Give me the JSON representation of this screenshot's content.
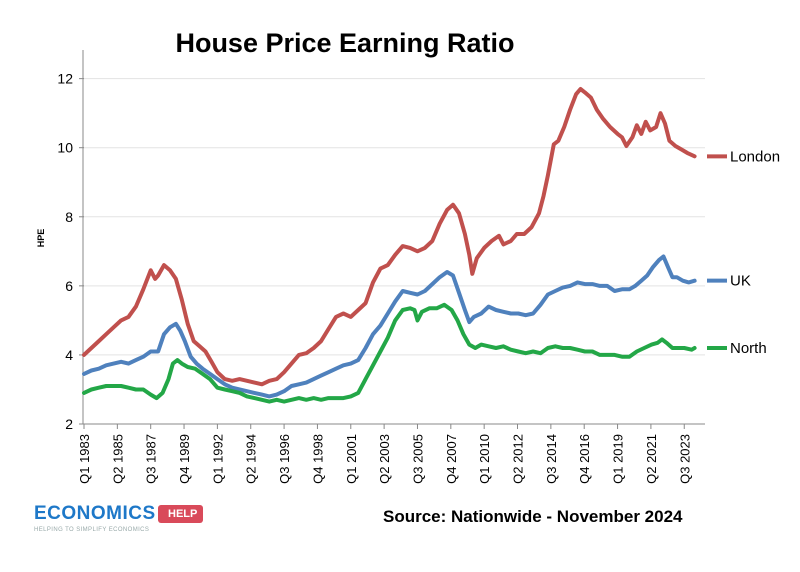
{
  "chart_data": {
    "type": "line",
    "title": "House Price Earning Ratio",
    "ylabel": "HPE",
    "ylim": [
      2,
      12.8
    ],
    "yticks": [
      2,
      4,
      6,
      8,
      10,
      12
    ],
    "xrange": [
      1983.0,
      2024.9
    ],
    "xtick_labels": [
      {
        "label": "Q1 1983",
        "x": 1983.0
      },
      {
        "label": "Q2 1985",
        "x": 1985.25
      },
      {
        "label": "Q3 1987",
        "x": 1987.5
      },
      {
        "label": "Q4 1989",
        "x": 1989.75
      },
      {
        "label": "Q1 1992",
        "x": 1992.0
      },
      {
        "label": "Q2 1994",
        "x": 1994.25
      },
      {
        "label": "Q3 1996",
        "x": 1996.5
      },
      {
        "label": "Q4 1998",
        "x": 1998.75
      },
      {
        "label": "Q1 2001",
        "x": 2001.0
      },
      {
        "label": "Q2 2003",
        "x": 2003.25
      },
      {
        "label": "Q3 2005",
        "x": 2005.5
      },
      {
        "label": "Q4 2007",
        "x": 2007.75
      },
      {
        "label": "Q1 2010",
        "x": 2010.0
      },
      {
        "label": "Q2 2012",
        "x": 2012.25
      },
      {
        "label": "Q3 2014",
        "x": 2014.5
      },
      {
        "label": "Q4 2016",
        "x": 2016.75
      },
      {
        "label": "Q1 2019",
        "x": 2019.0
      },
      {
        "label": "Q2 2021",
        "x": 2021.25
      },
      {
        "label": "Q3 2023",
        "x": 2023.5
      }
    ],
    "grid": "horizontal",
    "legend": "end-of-line labels, right",
    "series": [
      {
        "name": "London",
        "color": "#c0504d",
        "points": [
          [
            1983.0,
            4.0
          ],
          [
            1983.5,
            4.2
          ],
          [
            1984.0,
            4.4
          ],
          [
            1984.5,
            4.6
          ],
          [
            1985.0,
            4.8
          ],
          [
            1985.5,
            5.0
          ],
          [
            1986.0,
            5.1
          ],
          [
            1986.5,
            5.4
          ],
          [
            1987.0,
            5.9
          ],
          [
            1987.5,
            6.45
          ],
          [
            1987.8,
            6.2
          ],
          [
            1988.0,
            6.3
          ],
          [
            1988.4,
            6.6
          ],
          [
            1988.8,
            6.45
          ],
          [
            1989.2,
            6.2
          ],
          [
            1989.6,
            5.6
          ],
          [
            1990.0,
            4.9
          ],
          [
            1990.4,
            4.4
          ],
          [
            1990.8,
            4.25
          ],
          [
            1991.2,
            4.1
          ],
          [
            1991.6,
            3.8
          ],
          [
            1992.0,
            3.5
          ],
          [
            1992.5,
            3.3
          ],
          [
            1993.0,
            3.25
          ],
          [
            1993.5,
            3.3
          ],
          [
            1994.0,
            3.25
          ],
          [
            1994.5,
            3.2
          ],
          [
            1995.0,
            3.15
          ],
          [
            1995.5,
            3.25
          ],
          [
            1996.0,
            3.3
          ],
          [
            1996.5,
            3.5
          ],
          [
            1997.0,
            3.75
          ],
          [
            1997.5,
            4.0
          ],
          [
            1998.0,
            4.05
          ],
          [
            1998.5,
            4.2
          ],
          [
            1999.0,
            4.4
          ],
          [
            1999.5,
            4.75
          ],
          [
            2000.0,
            5.1
          ],
          [
            2000.5,
            5.2
          ],
          [
            2001.0,
            5.1
          ],
          [
            2001.5,
            5.3
          ],
          [
            2002.0,
            5.5
          ],
          [
            2002.5,
            6.1
          ],
          [
            2003.0,
            6.5
          ],
          [
            2003.5,
            6.6
          ],
          [
            2004.0,
            6.9
          ],
          [
            2004.5,
            7.15
          ],
          [
            2005.0,
            7.1
          ],
          [
            2005.5,
            7.0
          ],
          [
            2006.0,
            7.1
          ],
          [
            2006.5,
            7.3
          ],
          [
            2007.0,
            7.8
          ],
          [
            2007.5,
            8.2
          ],
          [
            2007.9,
            8.35
          ],
          [
            2008.3,
            8.1
          ],
          [
            2008.7,
            7.5
          ],
          [
            2009.0,
            6.9
          ],
          [
            2009.2,
            6.35
          ],
          [
            2009.5,
            6.8
          ],
          [
            2010.0,
            7.1
          ],
          [
            2010.5,
            7.3
          ],
          [
            2011.0,
            7.45
          ],
          [
            2011.3,
            7.2
          ],
          [
            2011.8,
            7.3
          ],
          [
            2012.2,
            7.5
          ],
          [
            2012.7,
            7.5
          ],
          [
            2013.2,
            7.7
          ],
          [
            2013.7,
            8.1
          ],
          [
            2014.0,
            8.6
          ],
          [
            2014.3,
            9.2
          ],
          [
            2014.7,
            10.1
          ],
          [
            2015.0,
            10.2
          ],
          [
            2015.4,
            10.6
          ],
          [
            2015.8,
            11.1
          ],
          [
            2016.2,
            11.55
          ],
          [
            2016.5,
            11.7
          ],
          [
            2016.8,
            11.6
          ],
          [
            2017.2,
            11.45
          ],
          [
            2017.6,
            11.1
          ],
          [
            2018.0,
            10.85
          ],
          [
            2018.5,
            10.6
          ],
          [
            2019.0,
            10.4
          ],
          [
            2019.3,
            10.3
          ],
          [
            2019.6,
            10.05
          ],
          [
            2020.0,
            10.3
          ],
          [
            2020.3,
            10.65
          ],
          [
            2020.6,
            10.4
          ],
          [
            2020.9,
            10.75
          ],
          [
            2021.2,
            10.5
          ],
          [
            2021.6,
            10.6
          ],
          [
            2021.9,
            11.0
          ],
          [
            2022.2,
            10.7
          ],
          [
            2022.5,
            10.2
          ],
          [
            2022.9,
            10.05
          ],
          [
            2023.3,
            9.95
          ],
          [
            2023.7,
            9.85
          ],
          [
            2024.2,
            9.75
          ]
        ]
      },
      {
        "name": "UK",
        "color": "#4f81bd",
        "points": [
          [
            1983.0,
            3.45
          ],
          [
            1983.5,
            3.55
          ],
          [
            1984.0,
            3.6
          ],
          [
            1984.5,
            3.7
          ],
          [
            1985.0,
            3.75
          ],
          [
            1985.5,
            3.8
          ],
          [
            1986.0,
            3.75
          ],
          [
            1986.5,
            3.85
          ],
          [
            1987.0,
            3.95
          ],
          [
            1987.5,
            4.1
          ],
          [
            1988.0,
            4.1
          ],
          [
            1988.4,
            4.6
          ],
          [
            1988.8,
            4.8
          ],
          [
            1989.2,
            4.9
          ],
          [
            1989.5,
            4.7
          ],
          [
            1989.8,
            4.4
          ],
          [
            1990.2,
            3.95
          ],
          [
            1990.6,
            3.75
          ],
          [
            1991.0,
            3.6
          ],
          [
            1991.5,
            3.45
          ],
          [
            1992.0,
            3.3
          ],
          [
            1992.5,
            3.15
          ],
          [
            1993.0,
            3.05
          ],
          [
            1993.5,
            3.0
          ],
          [
            1994.0,
            2.95
          ],
          [
            1994.5,
            2.9
          ],
          [
            1995.0,
            2.85
          ],
          [
            1995.5,
            2.8
          ],
          [
            1996.0,
            2.85
          ],
          [
            1996.5,
            2.95
          ],
          [
            1997.0,
            3.1
          ],
          [
            1997.5,
            3.15
          ],
          [
            1998.0,
            3.2
          ],
          [
            1998.5,
            3.3
          ],
          [
            1999.0,
            3.4
          ],
          [
            1999.5,
            3.5
          ],
          [
            2000.0,
            3.6
          ],
          [
            2000.5,
            3.7
          ],
          [
            2001.0,
            3.75
          ],
          [
            2001.5,
            3.85
          ],
          [
            2002.0,
            4.2
          ],
          [
            2002.5,
            4.6
          ],
          [
            2003.0,
            4.85
          ],
          [
            2003.5,
            5.2
          ],
          [
            2004.0,
            5.55
          ],
          [
            2004.5,
            5.85
          ],
          [
            2005.0,
            5.8
          ],
          [
            2005.5,
            5.75
          ],
          [
            2006.0,
            5.85
          ],
          [
            2006.5,
            6.05
          ],
          [
            2007.0,
            6.25
          ],
          [
            2007.5,
            6.4
          ],
          [
            2007.9,
            6.3
          ],
          [
            2008.3,
            5.8
          ],
          [
            2008.7,
            5.3
          ],
          [
            2009.0,
            4.95
          ],
          [
            2009.3,
            5.1
          ],
          [
            2009.8,
            5.2
          ],
          [
            2010.3,
            5.4
          ],
          [
            2010.8,
            5.3
          ],
          [
            2011.3,
            5.25
          ],
          [
            2011.8,
            5.2
          ],
          [
            2012.3,
            5.2
          ],
          [
            2012.8,
            5.15
          ],
          [
            2013.3,
            5.2
          ],
          [
            2013.8,
            5.45
          ],
          [
            2014.3,
            5.75
          ],
          [
            2014.8,
            5.85
          ],
          [
            2015.3,
            5.95
          ],
          [
            2015.8,
            6.0
          ],
          [
            2016.3,
            6.1
          ],
          [
            2016.8,
            6.05
          ],
          [
            2017.3,
            6.05
          ],
          [
            2017.8,
            6.0
          ],
          [
            2018.3,
            6.0
          ],
          [
            2018.8,
            5.85
          ],
          [
            2019.3,
            5.9
          ],
          [
            2019.8,
            5.9
          ],
          [
            2020.2,
            6.0
          ],
          [
            2020.6,
            6.15
          ],
          [
            2021.0,
            6.3
          ],
          [
            2021.4,
            6.55
          ],
          [
            2021.8,
            6.75
          ],
          [
            2022.1,
            6.85
          ],
          [
            2022.4,
            6.55
          ],
          [
            2022.7,
            6.25
          ],
          [
            2023.0,
            6.25
          ],
          [
            2023.4,
            6.15
          ],
          [
            2023.8,
            6.1
          ],
          [
            2024.2,
            6.15
          ]
        ]
      },
      {
        "name": "North",
        "color": "#23a747",
        "points": [
          [
            1983.0,
            2.9
          ],
          [
            1983.5,
            3.0
          ],
          [
            1984.0,
            3.05
          ],
          [
            1984.5,
            3.1
          ],
          [
            1985.0,
            3.1
          ],
          [
            1985.5,
            3.1
          ],
          [
            1986.0,
            3.05
          ],
          [
            1986.5,
            3.0
          ],
          [
            1987.0,
            3.0
          ],
          [
            1987.5,
            2.85
          ],
          [
            1987.9,
            2.75
          ],
          [
            1988.3,
            2.9
          ],
          [
            1988.7,
            3.3
          ],
          [
            1989.0,
            3.75
          ],
          [
            1989.3,
            3.85
          ],
          [
            1989.6,
            3.75
          ],
          [
            1990.0,
            3.65
          ],
          [
            1990.5,
            3.6
          ],
          [
            1991.0,
            3.45
          ],
          [
            1991.5,
            3.3
          ],
          [
            1992.0,
            3.05
          ],
          [
            1992.5,
            3.0
          ],
          [
            1993.0,
            2.95
          ],
          [
            1993.5,
            2.9
          ],
          [
            1994.0,
            2.8
          ],
          [
            1994.5,
            2.75
          ],
          [
            1995.0,
            2.7
          ],
          [
            1995.5,
            2.65
          ],
          [
            1996.0,
            2.7
          ],
          [
            1996.5,
            2.65
          ],
          [
            1997.0,
            2.7
          ],
          [
            1997.5,
            2.75
          ],
          [
            1998.0,
            2.7
          ],
          [
            1998.5,
            2.75
          ],
          [
            1999.0,
            2.7
          ],
          [
            1999.5,
            2.75
          ],
          [
            2000.0,
            2.75
          ],
          [
            2000.5,
            2.75
          ],
          [
            2001.0,
            2.8
          ],
          [
            2001.5,
            2.9
          ],
          [
            2002.0,
            3.3
          ],
          [
            2002.5,
            3.7
          ],
          [
            2003.0,
            4.1
          ],
          [
            2003.5,
            4.5
          ],
          [
            2004.0,
            5.0
          ],
          [
            2004.5,
            5.3
          ],
          [
            2005.0,
            5.35
          ],
          [
            2005.3,
            5.3
          ],
          [
            2005.5,
            5.0
          ],
          [
            2005.8,
            5.25
          ],
          [
            2006.3,
            5.35
          ],
          [
            2006.8,
            5.35
          ],
          [
            2007.3,
            5.45
          ],
          [
            2007.8,
            5.3
          ],
          [
            2008.2,
            5.0
          ],
          [
            2008.6,
            4.6
          ],
          [
            2009.0,
            4.3
          ],
          [
            2009.4,
            4.2
          ],
          [
            2009.8,
            4.3
          ],
          [
            2010.3,
            4.25
          ],
          [
            2010.8,
            4.2
          ],
          [
            2011.3,
            4.25
          ],
          [
            2011.8,
            4.15
          ],
          [
            2012.3,
            4.1
          ],
          [
            2012.8,
            4.05
          ],
          [
            2013.3,
            4.1
          ],
          [
            2013.8,
            4.05
          ],
          [
            2014.3,
            4.2
          ],
          [
            2014.8,
            4.25
          ],
          [
            2015.3,
            4.2
          ],
          [
            2015.8,
            4.2
          ],
          [
            2016.3,
            4.15
          ],
          [
            2016.8,
            4.1
          ],
          [
            2017.3,
            4.1
          ],
          [
            2017.8,
            4.0
          ],
          [
            2018.3,
            4.0
          ],
          [
            2018.8,
            4.0
          ],
          [
            2019.3,
            3.95
          ],
          [
            2019.8,
            3.95
          ],
          [
            2020.3,
            4.1
          ],
          [
            2020.8,
            4.2
          ],
          [
            2021.3,
            4.3
          ],
          [
            2021.7,
            4.35
          ],
          [
            2022.0,
            4.45
          ],
          [
            2022.3,
            4.35
          ],
          [
            2022.7,
            4.2
          ],
          [
            2023.1,
            4.2
          ],
          [
            2023.5,
            4.2
          ],
          [
            2024.0,
            4.15
          ],
          [
            2024.2,
            4.2
          ]
        ]
      }
    ]
  },
  "footer": {
    "source": "Source: Nationwide - November 2024"
  },
  "logo": {
    "main": "ECONOMICS",
    "badge": "HELP",
    "tagline": "HELPING TO SIMPLIFY ECONOMICS"
  }
}
